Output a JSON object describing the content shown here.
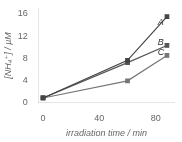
{
  "chart_data": {
    "type": "line",
    "xlabel": "irradiation time / min",
    "ylabel": "[NH₄⁺] / µM",
    "x": [
      0,
      60,
      88
    ],
    "series": [
      {
        "name": "A",
        "color": "#444444",
        "marker": "square",
        "line_style": "solid",
        "values": [
          0.8,
          7.6,
          15.5
        ]
      },
      {
        "name": "B",
        "color": "#555555",
        "marker": "square",
        "line_style": "solid",
        "values": [
          0.8,
          7.2,
          10.3
        ]
      },
      {
        "name": "C",
        "color": "#777777",
        "marker": "square",
        "line_style": "solid",
        "values": [
          0.8,
          3.9,
          8.5
        ]
      }
    ],
    "annotations": [
      {
        "text": "A",
        "x": 80,
        "y": 14.5
      },
      {
        "text": "B",
        "x": 80,
        "y": 10.9
      },
      {
        "text": "C",
        "x": 80,
        "y": 9.1
      }
    ],
    "xlim": [
      -3,
      93
    ],
    "xticks": [
      0,
      40,
      80
    ],
    "ylim": [
      0,
      17
    ],
    "yticks": [
      0,
      4,
      8,
      12,
      16
    ],
    "grid": false
  }
}
